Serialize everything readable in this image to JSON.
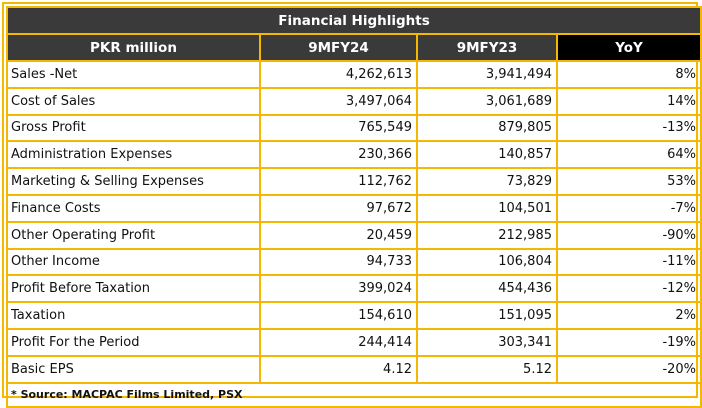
{
  "title": "Financial Highlights",
  "headers": [
    "PKR million",
    "9MFY24",
    "9MFY23",
    "YoY"
  ],
  "rows": [
    {
      "label": "Sales -Net",
      "fy24": "4,262,613",
      "fy23": "3,941,494",
      "yoy": "8%"
    },
    {
      "label": "Cost of Sales",
      "fy24": "3,497,064",
      "fy23": "3,061,689",
      "yoy": "14%"
    },
    {
      "label": "Gross Profit",
      "fy24": "765,549",
      "fy23": "879,805",
      "yoy": "-13%"
    },
    {
      "label": "Administration Expenses",
      "fy24": "230,366",
      "fy23": "140,857",
      "yoy": "64%"
    },
    {
      "label": "Marketing & Selling Expenses",
      "fy24": "112,762",
      "fy23": "73,829",
      "yoy": "53%"
    },
    {
      "label": "Finance Costs",
      "fy24": "97,672",
      "fy23": "104,501",
      "yoy": "-7%"
    },
    {
      "label": "Other Operating Profit",
      "fy24": "20,459",
      "fy23": "212,985",
      "yoy": "-90%"
    },
    {
      "label": "Other Income",
      "fy24": "94,733",
      "fy23": "106,804",
      "yoy": "-11%"
    },
    {
      "label": "Profit Before Taxation",
      "fy24": "399,024",
      "fy23": "454,436",
      "yoy": "-12%"
    },
    {
      "label": "Taxation",
      "fy24": "154,610",
      "fy23": "151,095",
      "yoy": "2%"
    },
    {
      "label": "Profit For the Period",
      "fy24": "244,414",
      "fy23": "303,341",
      "yoy": "-19%"
    },
    {
      "label": "Basic EPS",
      "fy24": "4.12",
      "fy23": "5.12",
      "yoy": "-20%"
    }
  ],
  "source": "* Source: MACPAC Films Limited, PSX",
  "colors": {
    "border": "#f5b800",
    "header_bg": "#3a3a3a",
    "yoy_header_bg": "#000000"
  }
}
